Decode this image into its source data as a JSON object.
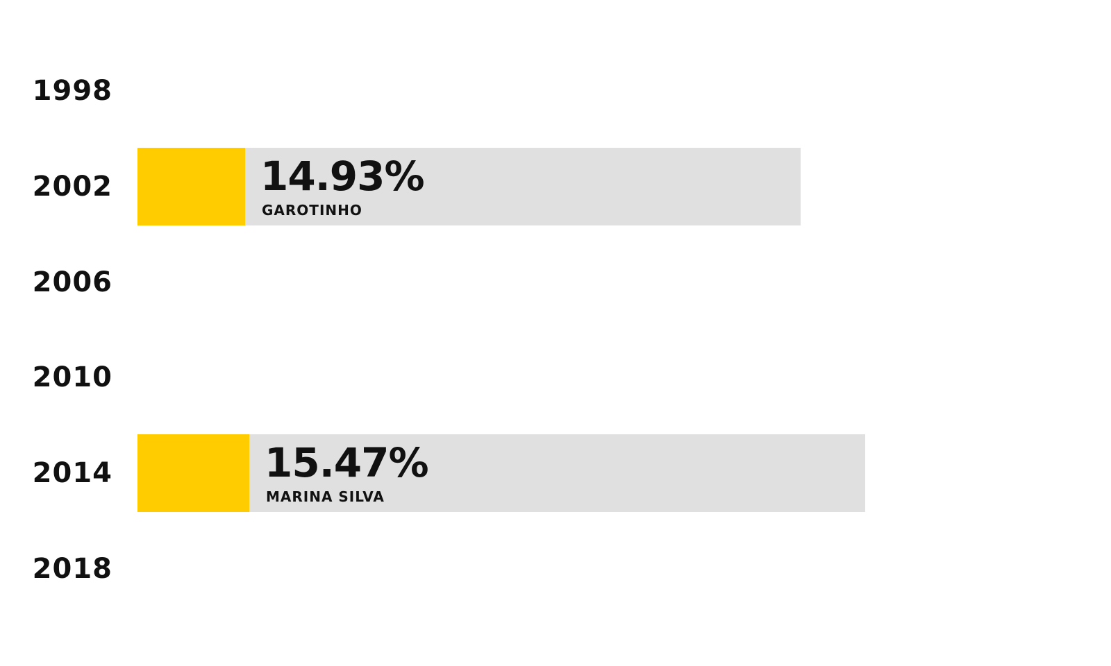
{
  "chart_data": {
    "type": "bar",
    "orientation": "horizontal",
    "categories": [
      "1998",
      "2002",
      "2006",
      "2010",
      "2014",
      "2018"
    ],
    "series": [
      {
        "values": [
          null,
          14.93,
          null,
          null,
          15.47,
          null
        ]
      }
    ],
    "data_labels": [
      "",
      "14.93%",
      "",
      "",
      "15.47%",
      ""
    ],
    "candidates": [
      "",
      "GAROTINHO",
      "",
      "",
      "MARINA SILVA",
      ""
    ],
    "background_max": [
      null,
      100,
      null,
      null,
      100,
      null
    ],
    "xlim": [
      0,
      100
    ],
    "grid": false,
    "legend": "none",
    "colors": {
      "fill": "#ffcc00",
      "track": "#e0e0e0",
      "text": "#111111"
    }
  }
}
